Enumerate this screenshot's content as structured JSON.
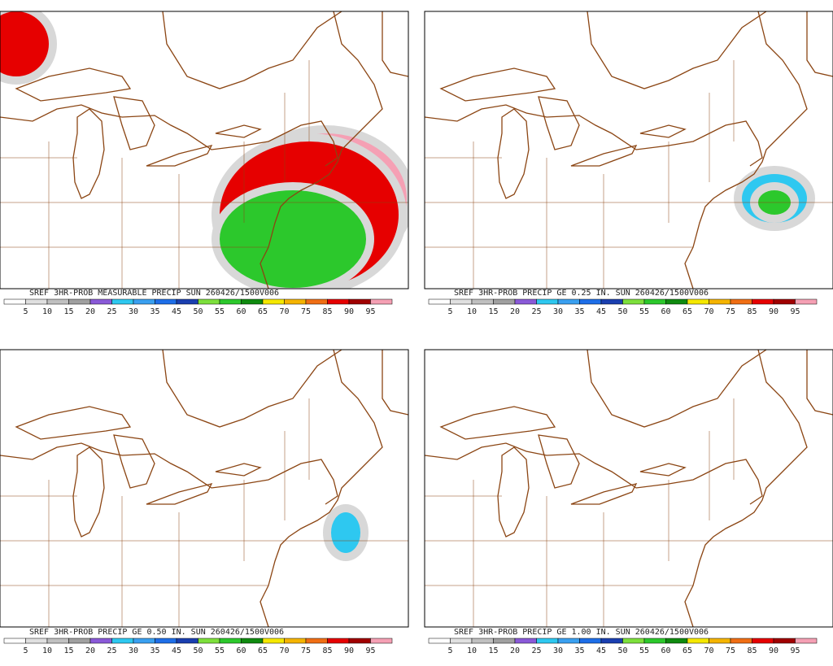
{
  "panels": [
    {
      "title": "SREF 3HR-PROB MEASURABLE PRECIP SUN 260426/1500V006",
      "colorbar_labels": [
        "5",
        "10",
        "15",
        "20",
        "25",
        "30",
        "35",
        "45",
        "50",
        "55",
        "60",
        "65",
        "70",
        "75",
        "85",
        "90",
        "95"
      ]
    },
    {
      "title": "SREF 3HR-PROB PRECIP GE 0.25 IN. SUN 260426/1500V006",
      "colorbar_labels": [
        "5",
        "10",
        "15",
        "20",
        "25",
        "30",
        "35",
        "45",
        "50",
        "55",
        "60",
        "65",
        "70",
        "75",
        "85",
        "90",
        "95"
      ]
    },
    {
      "title": "SREF 3HR-PROB PRECIP GE 0.50 IN. SUN 260426/1500V006",
      "colorbar_labels": [
        "5",
        "10",
        "15",
        "20",
        "25",
        "30",
        "35",
        "45",
        "50",
        "55",
        "60",
        "65",
        "70",
        "75",
        "85",
        "90",
        "95"
      ]
    },
    {
      "title": "SREF 3HR-PROB PRECIP GE 1.00 IN. SUN 260426/1500V006",
      "colorbar_labels": [
        "5",
        "10",
        "15",
        "20",
        "25",
        "30",
        "35",
        "45",
        "50",
        "55",
        "60",
        "65",
        "70",
        "75",
        "85",
        "90",
        "95"
      ]
    }
  ],
  "colorbar_colors": [
    "#ffffff",
    "#e0e0e0",
    "#c0c0c0",
    "#a0a0a0",
    "#8a5ad8",
    "#2ec8f0",
    "#3aa0f0",
    "#1e6ee8",
    "#1a3fb0",
    "#7de03c",
    "#2cc82c",
    "#0f8a0f",
    "#f5e800",
    "#f5b400",
    "#f06e14",
    "#e60000",
    "#a00000",
    "#f5a0b4"
  ]
}
